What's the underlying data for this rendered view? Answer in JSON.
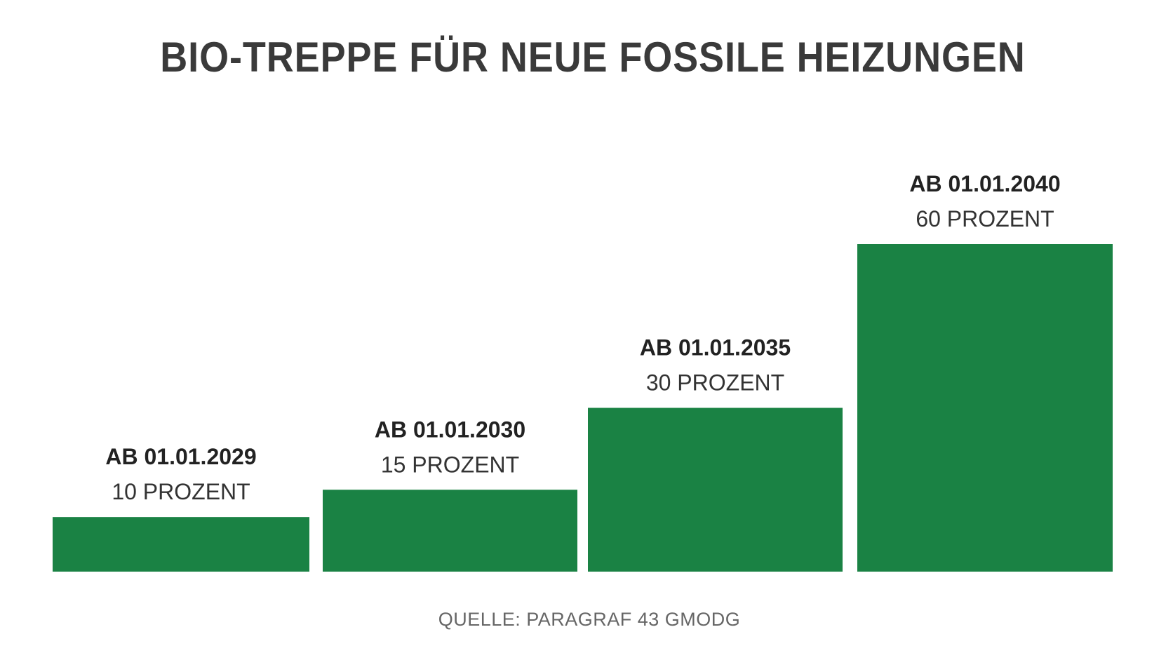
{
  "title": "BIO-TREPPE FÜR NEUE FOSSILE HEIZUNGEN",
  "source": "QUELLE: PARAGRAF 43 GMODG",
  "colors": {
    "bar": "#1a8244",
    "title": "#3a3a3a",
    "label_bold": "#222222",
    "label": "#333333",
    "source": "#666666",
    "background": "#ffffff"
  },
  "chart_data": {
    "type": "bar",
    "categories": [
      "AB 01.01.2029",
      "AB 01.01.2030",
      "AB 01.01.2035",
      "AB 01.01.2040"
    ],
    "values": [
      10,
      15,
      30,
      60
    ],
    "value_labels": [
      "10 PROZENT",
      "15 PROZENT",
      "30 PROZENT",
      "60 PROZENT"
    ],
    "unit": "PROZENT",
    "title": "BIO-TREPPE FÜR NEUE FOSSILE HEIZUNGEN",
    "xlabel": "",
    "ylabel": "",
    "ylim": [
      0,
      60
    ],
    "grid": false,
    "legend": "none"
  }
}
